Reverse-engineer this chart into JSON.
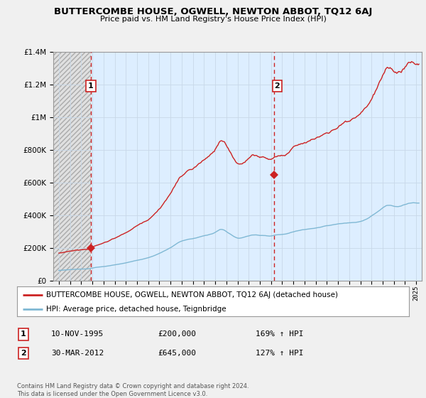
{
  "title": "BUTTERCOMBE HOUSE, OGWELL, NEWTON ABBOT, TQ12 6AJ",
  "subtitle": "Price paid vs. HM Land Registry's House Price Index (HPI)",
  "hpi_label": "HPI: Average price, detached house, Teignbridge",
  "house_label": "BUTTERCOMBE HOUSE, OGWELL, NEWTON ABBOT, TQ12 6AJ (detached house)",
  "sale1_date": "10-NOV-1995",
  "sale1_price": "£200,000",
  "sale1_hpi": "169% ↑ HPI",
  "sale1_year": 1995.87,
  "sale1_value": 200000,
  "sale2_date": "30-MAR-2012",
  "sale2_price": "£645,000",
  "sale2_hpi": "127% ↑ HPI",
  "sale2_year": 2012.25,
  "sale2_value": 645000,
  "vline1_year": 1995.87,
  "vline2_year": 2012.25,
  "ylim": [
    0,
    1400000
  ],
  "xlim_start": 1992.5,
  "xlim_end": 2025.5,
  "background_color": "#f0f0f0",
  "hatch_color": "#cccccc",
  "plot_bg_color": "#ddeeff",
  "hatch_bg_color": "#e8e8e8",
  "hpi_color": "#7fb8d4",
  "house_color": "#cc2222",
  "vline_color": "#cc2222",
  "copyright_text": "Contains HM Land Registry data © Crown copyright and database right 2024.\nThis data is licensed under the Open Government Licence v3.0."
}
